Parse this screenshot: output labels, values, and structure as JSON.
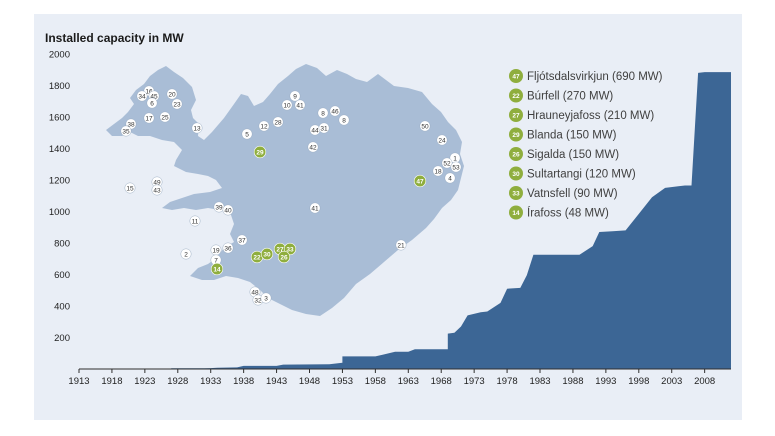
{
  "chart_data": {
    "type": "area",
    "title": "Installed capacity in MW",
    "xlabel": "",
    "ylabel": "",
    "xlim": [
      1913,
      2012
    ],
    "ylim": [
      0,
      2000
    ],
    "yticks": [
      200,
      400,
      600,
      800,
      1000,
      1200,
      1400,
      1600,
      1800,
      2000
    ],
    "xticks": [
      1913,
      1918,
      1923,
      1928,
      1933,
      1938,
      1943,
      1948,
      1953,
      1958,
      1963,
      1968,
      1973,
      1978,
      1983,
      1988,
      1993,
      1998,
      2003,
      2008
    ],
    "grid": false,
    "series": [
      {
        "color": "#3c6695",
        "points": [
          [
            1913,
            0
          ],
          [
            1921,
            0
          ],
          [
            1921,
            3
          ],
          [
            1927,
            3
          ],
          [
            1927,
            5
          ],
          [
            1932,
            5
          ],
          [
            1933,
            6
          ],
          [
            1934,
            8
          ],
          [
            1937,
            10
          ],
          [
            1938,
            20
          ],
          [
            1943,
            20
          ],
          [
            1944,
            28
          ],
          [
            1951,
            30
          ],
          [
            1953,
            40
          ],
          [
            1953,
            80
          ],
          [
            1958,
            80
          ],
          [
            1961,
            110
          ],
          [
            1963,
            110
          ],
          [
            1964,
            125
          ],
          [
            1969,
            125
          ],
          [
            1969,
            225
          ],
          [
            1970,
            230
          ],
          [
            1971,
            270
          ],
          [
            1972,
            340
          ],
          [
            1974,
            360
          ],
          [
            1975,
            365
          ],
          [
            1977,
            420
          ],
          [
            1978,
            510
          ],
          [
            1980,
            515
          ],
          [
            1981,
            595
          ],
          [
            1982,
            725
          ],
          [
            1989,
            725
          ],
          [
            1991,
            780
          ],
          [
            1992,
            870
          ],
          [
            1994,
            875
          ],
          [
            1996,
            880
          ],
          [
            1998,
            985
          ],
          [
            2000,
            1090
          ],
          [
            2002,
            1150
          ],
          [
            2004,
            1160
          ],
          [
            2005,
            1165
          ],
          [
            2006,
            1165
          ],
          [
            2007,
            1880
          ],
          [
            2008,
            1885
          ],
          [
            2012,
            1885
          ]
        ]
      }
    ],
    "legend": [
      {
        "num": "47",
        "label": "Fljótsdalsvirkjun (690 MW)"
      },
      {
        "num": "22",
        "label": "Búrfell (270 MW)"
      },
      {
        "num": "27",
        "label": "Hrauneyjafoss (210 MW)"
      },
      {
        "num": "29",
        "label": "Blanda (150 MW)"
      },
      {
        "num": "26",
        "label": "Sigalda (150 MW)"
      },
      {
        "num": "30",
        "label": "Sultartangi (120 MW)"
      },
      {
        "num": "33",
        "label": "Vatnsfell (90 MW)"
      },
      {
        "num": "14",
        "label": "Írafoss (48 MW)"
      }
    ],
    "legend_position": "top-right"
  },
  "map": {
    "fill": "#a9bdd6",
    "labels": [
      {
        "t": "16"
      },
      {
        "t": "34"
      },
      {
        "t": "45"
      },
      {
        "t": "20"
      },
      {
        "t": "6"
      },
      {
        "t": "23"
      },
      {
        "t": "38"
      },
      {
        "t": "17"
      },
      {
        "t": "25"
      },
      {
        "t": "35"
      },
      {
        "t": "13"
      },
      {
        "t": "9"
      },
      {
        "t": "10"
      },
      {
        "t": "41"
      },
      {
        "t": "12"
      },
      {
        "t": "28"
      },
      {
        "t": "8"
      },
      {
        "t": "46"
      },
      {
        "t": "8"
      },
      {
        "t": "44"
      },
      {
        "t": "31"
      },
      {
        "t": "5"
      },
      {
        "t": "50"
      },
      {
        "t": "24"
      },
      {
        "t": "42"
      },
      {
        "t": "1"
      },
      {
        "t": "52"
      },
      {
        "t": "53"
      },
      {
        "t": "18"
      },
      {
        "t": "4"
      },
      {
        "t": "49"
      },
      {
        "t": "15"
      },
      {
        "t": "43"
      },
      {
        "t": "39"
      },
      {
        "t": "40"
      },
      {
        "t": "41"
      },
      {
        "t": "11"
      },
      {
        "t": "37"
      },
      {
        "t": "19"
      },
      {
        "t": "36"
      },
      {
        "t": "2"
      },
      {
        "t": "7"
      },
      {
        "t": "21"
      },
      {
        "t": "48"
      },
      {
        "t": "32"
      },
      {
        "t": "3"
      }
    ],
    "green_markers": [
      {
        "t": "29"
      },
      {
        "t": "47"
      },
      {
        "t": "27"
      },
      {
        "t": "33"
      },
      {
        "t": "22"
      },
      {
        "t": "30"
      },
      {
        "t": "26"
      },
      {
        "t": "14"
      }
    ]
  },
  "colors": {
    "panel": "#e9eef6",
    "area": "#3c6695",
    "map": "#a9bdd6",
    "badge": "#8fae3e"
  }
}
